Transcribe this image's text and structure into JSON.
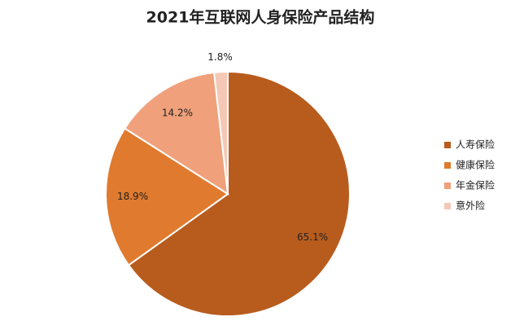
{
  "chart_data": {
    "type": "pie",
    "title": "2021年互联网人身保险产品结构",
    "categories": [
      "人寿保险",
      "健康保险",
      "年金保险",
      "意外险"
    ],
    "values": [
      65.1,
      18.9,
      14.2,
      1.8
    ],
    "value_labels": [
      "65.1%",
      "18.9%",
      "14.2%",
      "1.8%"
    ],
    "colors": [
      "#b85c1e",
      "#e07a2e",
      "#f0a07a",
      "#f5c8b5"
    ],
    "legend": "right"
  }
}
